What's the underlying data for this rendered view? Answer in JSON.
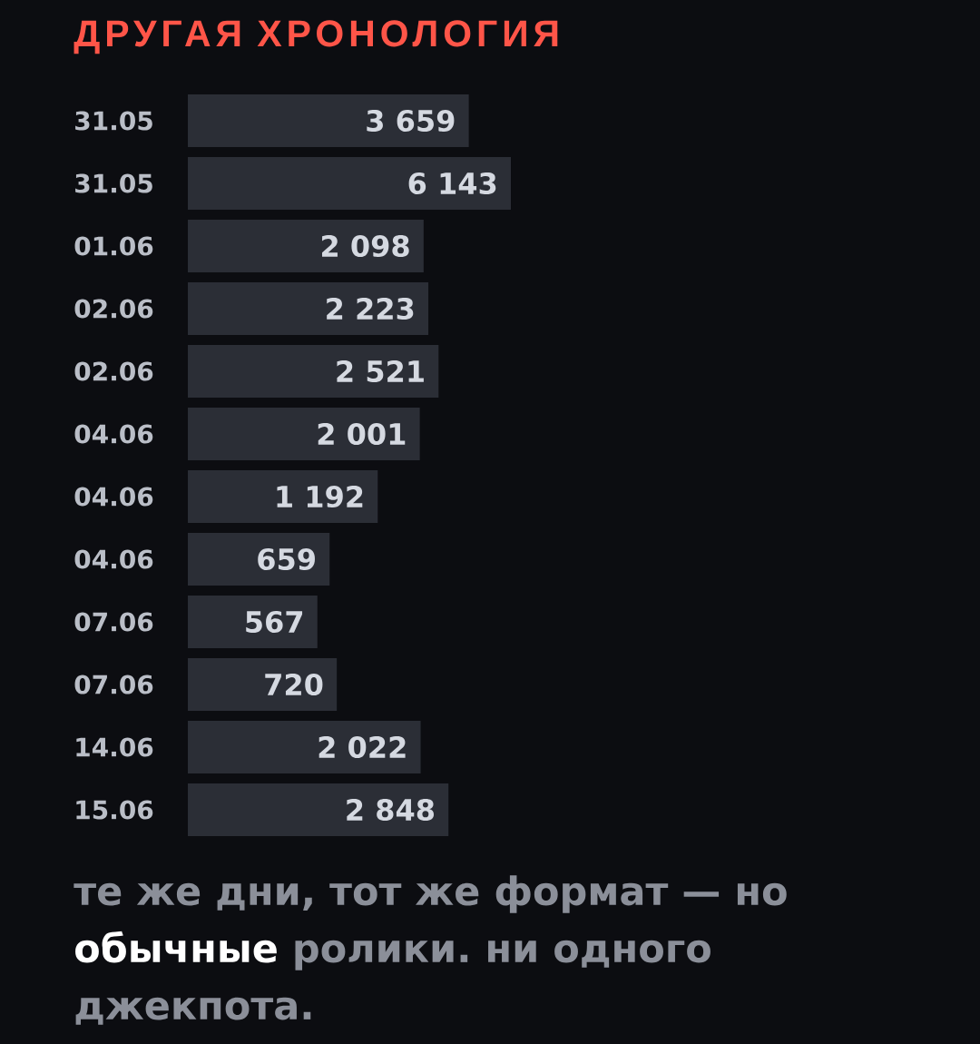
{
  "chart_data": {
    "type": "bar",
    "orientation": "horizontal",
    "title": "ДРУГАЯ ХРОНОЛОГИЯ",
    "categories": [
      "31.05",
      "31.05",
      "01.06",
      "02.06",
      "02.06",
      "04.06",
      "04.06",
      "04.06",
      "07.06",
      "07.06",
      "14.06",
      "15.06"
    ],
    "values": [
      3659,
      6143,
      2098,
      2223,
      2521,
      2001,
      1192,
      659,
      567,
      720,
      2022,
      2848
    ],
    "value_labels": [
      "3 659",
      "6 143",
      "2 098",
      "2 223",
      "2 521",
      "2 001",
      "1 192",
      "659",
      "567",
      "720",
      "2 022",
      "2 848"
    ],
    "color": "#2b2e36",
    "log": "x",
    "xlim": [
      115,
      6143
    ],
    "tick_labels": "y",
    "annotations": [
      "те же дни, тот же формат — но **обычные** ролики. ни одного джекпота."
    ]
  }
}
